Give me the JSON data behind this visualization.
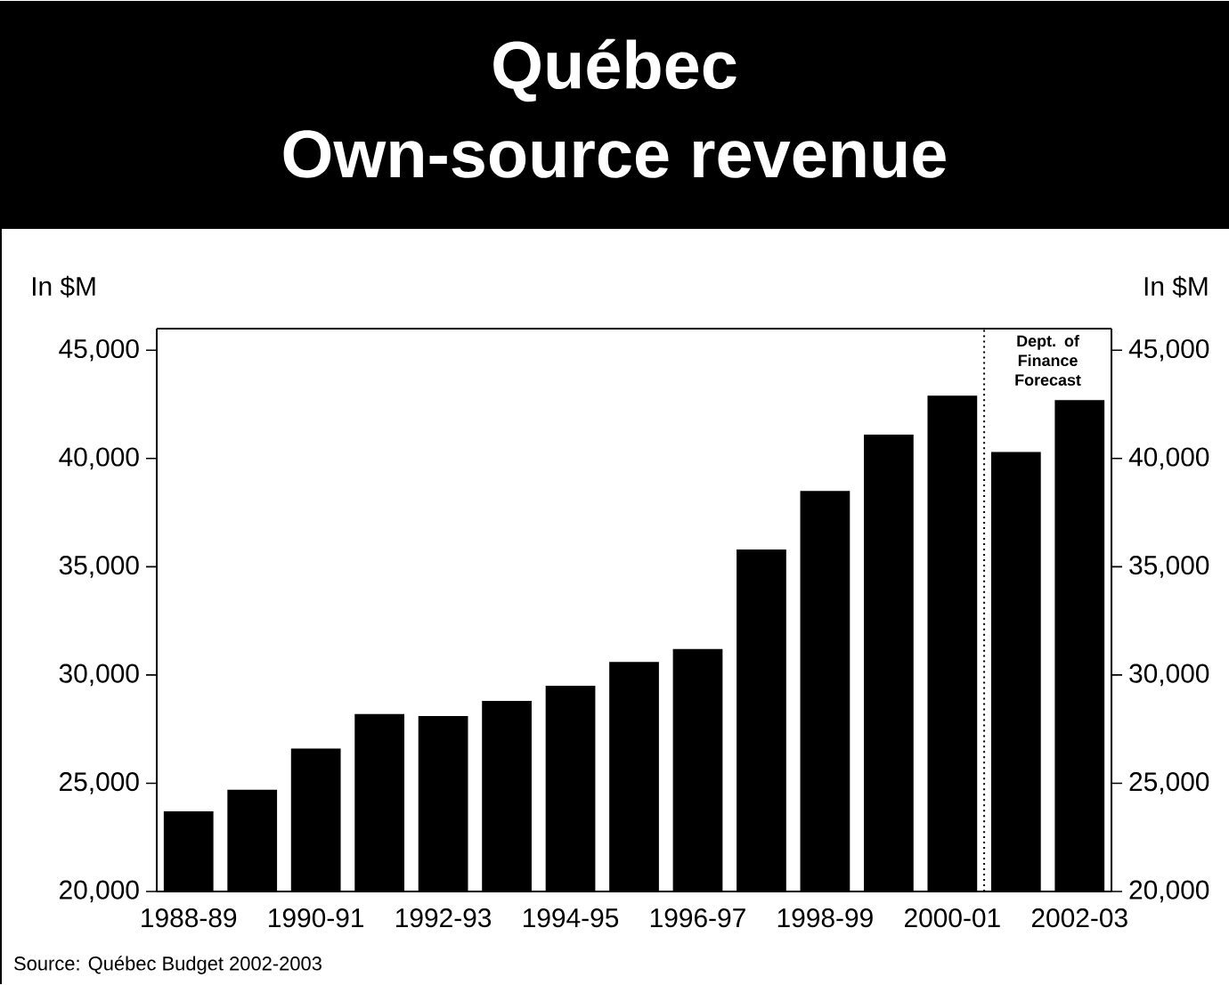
{
  "chart_data": {
    "type": "bar",
    "title": "Québec",
    "subtitle": "Own-source revenue",
    "ylabel": "In $M",
    "y2label": "In $M",
    "categories": [
      "1988-89",
      null,
      "1990-91",
      null,
      "1992-93",
      null,
      "1994-95",
      null,
      "1996-97",
      null,
      "1998-99",
      null,
      "2000-01",
      null,
      "2002-03"
    ],
    "values": [
      23700,
      24700,
      26600,
      28200,
      28100,
      28800,
      29500,
      30600,
      31200,
      35800,
      38500,
      41100,
      42900,
      40300,
      42700
    ],
    "color": "#000000",
    "ylim": [
      20000,
      46000
    ],
    "yticks": [
      {
        "value": 20000,
        "label": "20,000"
      },
      {
        "value": 25000,
        "label": "25,000"
      },
      {
        "value": 30000,
        "label": "30,000"
      },
      {
        "value": 35000,
        "label": "35,000"
      },
      {
        "value": 40000,
        "label": "40,000"
      },
      {
        "value": 45000,
        "label": "45,000"
      }
    ],
    "y2lim": [
      20000,
      46000
    ],
    "y2ticks": [
      {
        "value": 20000,
        "label": "20,000"
      },
      {
        "value": 25000,
        "label": "25,000"
      },
      {
        "value": 30000,
        "label": "30,000"
      },
      {
        "value": 35000,
        "label": "35,000"
      },
      {
        "value": 40000,
        "label": "40,000"
      },
      {
        "value": 45000,
        "label": "45,000"
      }
    ],
    "annotations": [
      "Source: Québec Budget 2002-2003",
      "Dept. of Finance Forecast"
    ],
    "grid": false
  }
}
